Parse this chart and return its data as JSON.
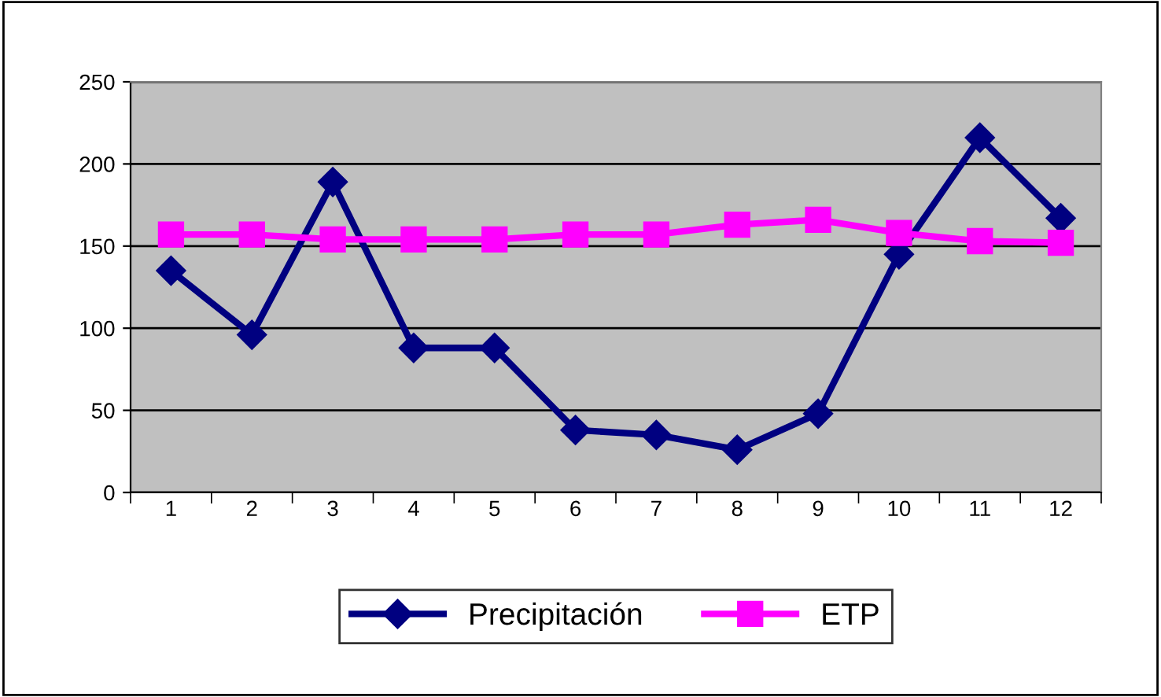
{
  "chart_data": {
    "type": "line",
    "categories": [
      "1",
      "2",
      "3",
      "4",
      "5",
      "6",
      "7",
      "8",
      "9",
      "10",
      "11",
      "12"
    ],
    "series": [
      {
        "name": "Precipitación",
        "color": "#000080",
        "marker": "diamond",
        "values": [
          135,
          96,
          189,
          88,
          88,
          38,
          35,
          26,
          48,
          145,
          216,
          167
        ]
      },
      {
        "name": "ETP",
        "color": "#ff00ff",
        "marker": "square",
        "values": [
          157,
          157,
          154,
          154,
          154,
          157,
          157,
          163,
          166,
          158,
          153,
          152
        ]
      }
    ],
    "ylim": [
      0,
      250
    ],
    "yticks": [
      0,
      50,
      100,
      150,
      200,
      250
    ],
    "grid": "y",
    "legend": "bottom",
    "line_style": "solid"
  }
}
